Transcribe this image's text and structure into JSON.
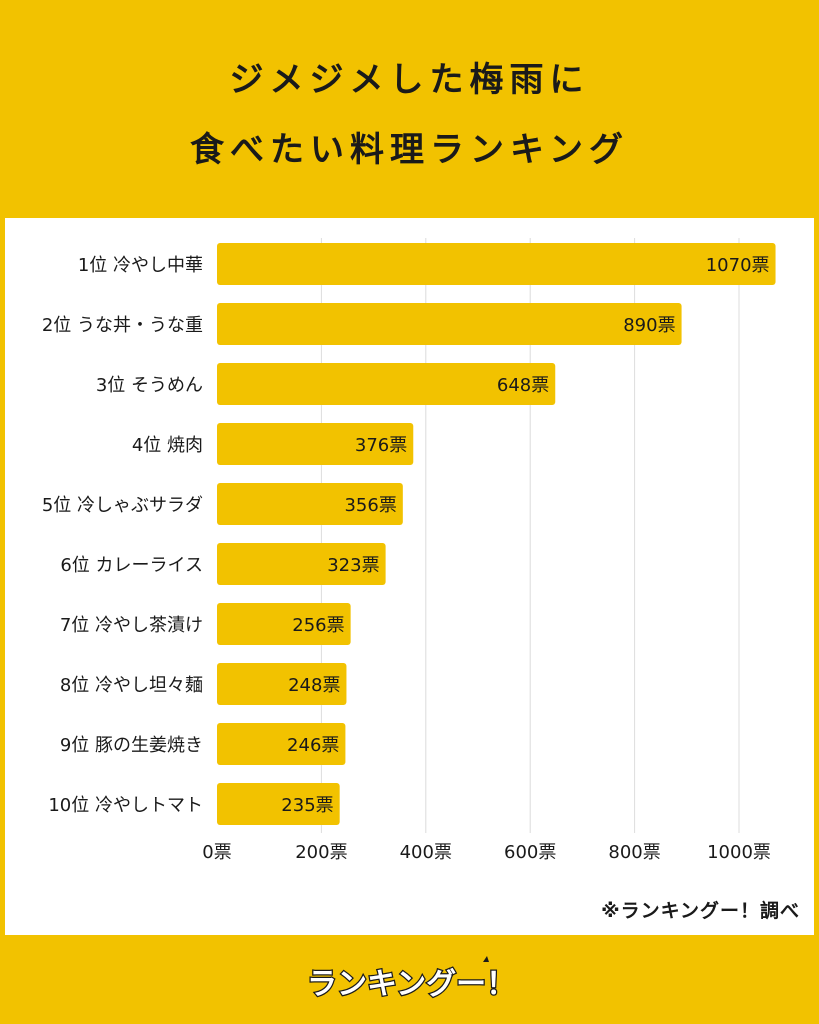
{
  "header": {
    "title_line1": "ジメジメした梅雨に",
    "title_line2": "食べたい料理ランキング"
  },
  "source_note": "※ランキングー！調べ",
  "logo": {
    "text": "ランキングー！",
    "icon": "thumbs-up-mascot-icon"
  },
  "colors": {
    "background": "#f2c200",
    "bar": "#f2c200",
    "panel": "#ffffff",
    "text": "#1a1a1a"
  },
  "chart_data": {
    "type": "bar",
    "orientation": "horizontal",
    "title": "ジメジメした梅雨に食べたい料理ランキング",
    "categories": [
      "1位 冷やし中華",
      "2位 うな丼・うな重",
      "3位 そうめん",
      "4位 焼肉",
      "5位 冷しゃぶサラダ",
      "6位 カレーライス",
      "7位 冷やし茶漬け",
      "8位 冷やし坦々麺",
      "9位 豚の生姜焼き",
      "10位 冷やしトマト"
    ],
    "values": [
      1070,
      890,
      648,
      376,
      356,
      323,
      256,
      248,
      246,
      235
    ],
    "value_labels": [
      "1070票",
      "890票",
      "648票",
      "376票",
      "356票",
      "323票",
      "256票",
      "248票",
      "246票",
      "235票"
    ],
    "xlim": [
      0,
      1000
    ],
    "xticks": [
      0,
      200,
      400,
      600,
      800,
      1000
    ],
    "xtick_labels": [
      "0票",
      "200票",
      "400票",
      "600票",
      "800票",
      "1000票"
    ],
    "grid": true,
    "xlabel": "",
    "ylabel": ""
  }
}
